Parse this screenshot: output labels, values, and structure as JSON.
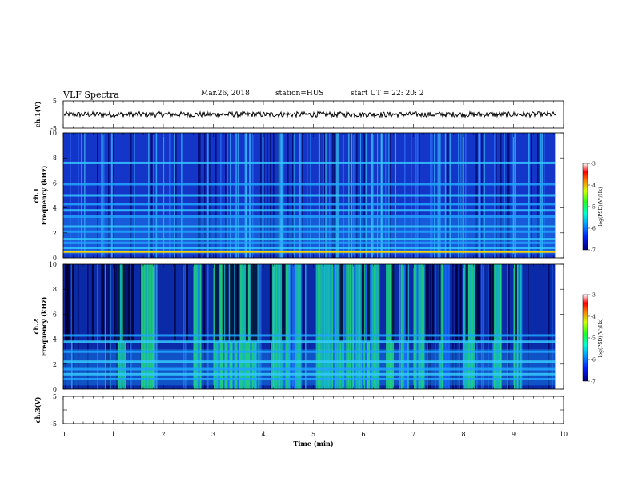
{
  "header": {
    "title": "VLF Spectra",
    "date": "Mar.26, 2018",
    "station": "station=HUS",
    "start": "start  UT =   22: 20: 2"
  },
  "chart_data": [
    {
      "type": "line",
      "name_label": "ch.1(V)",
      "ylabel": "ch.1(V)",
      "ylim": [
        -5,
        5
      ],
      "yticks": [
        "5",
        "-5"
      ],
      "description_values": {
        "level": 0,
        "noise_amplitude": 0.4
      }
    },
    {
      "type": "heatmap",
      "ylabel": "ch.1\nFrequency (kHz)",
      "ylabel_lines": [
        "ch.1",
        "Frequency (kHz)"
      ],
      "ylim": [
        0,
        10
      ],
      "yticks": [
        "0",
        "2",
        "4",
        "6",
        "8",
        "10"
      ],
      "xlim": [
        0,
        10
      ],
      "data_end_min": 9.83,
      "colorbar": {
        "label": "log(PSD)(V²/Hz)",
        "range": [
          -7,
          -3
        ],
        "ticks": [
          "-3",
          "-4",
          "-5",
          "-6",
          "-7"
        ]
      },
      "bands_khz": [
        0.5,
        0.8,
        1.2,
        1.5,
        2.1,
        2.5,
        3.3,
        3.8,
        4.3,
        5.0,
        5.9,
        7.6
      ],
      "bright_band_khz": 0.5
    },
    {
      "type": "heatmap",
      "ylabel": "ch.2\nFrequency (kHz)",
      "ylabel_lines": [
        "ch.2",
        "Frequency (kHz)"
      ],
      "ylim": [
        0,
        10
      ],
      "yticks": [
        "0",
        "2",
        "4",
        "6",
        "8",
        "10"
      ],
      "xlim": [
        0,
        10
      ],
      "data_end_min": 9.83,
      "colorbar": {
        "label": "log(PSD)(V²/Hz)",
        "range": [
          -7,
          -3
        ],
        "ticks": [
          "-3",
          "-4",
          "-5",
          "-6",
          "-7"
        ]
      },
      "bands_khz": [
        0.8,
        1.2,
        1.6,
        2.2,
        3.0,
        3.8,
        4.3
      ],
      "bright_intervals_min": [
        [
          1.1,
          1.25
        ],
        [
          1.55,
          1.8
        ],
        [
          2.6,
          2.75
        ],
        [
          3.0,
          3.9
        ],
        [
          4.15,
          4.55
        ],
        [
          4.6,
          4.75
        ],
        [
          5.05,
          5.3
        ],
        [
          5.3,
          6.3
        ],
        [
          6.45,
          6.6
        ],
        [
          6.75,
          6.9
        ],
        [
          7.0,
          7.2
        ],
        [
          7.5,
          7.7
        ],
        [
          8.0,
          8.2
        ],
        [
          8.6,
          8.75
        ],
        [
          9.0,
          9.15
        ]
      ]
    },
    {
      "type": "line",
      "ylabel": "ch.3(V)",
      "ylim": [
        -5,
        5
      ],
      "yticks": [
        "5",
        "0",
        "-5"
      ],
      "description_values": {
        "level": -2.2
      }
    }
  ],
  "xaxis": {
    "label": "Time (min)",
    "range": [
      0,
      10
    ],
    "ticks": [
      "0",
      "1",
      "2",
      "3",
      "4",
      "5",
      "6",
      "7",
      "8",
      "9",
      "10"
    ]
  }
}
